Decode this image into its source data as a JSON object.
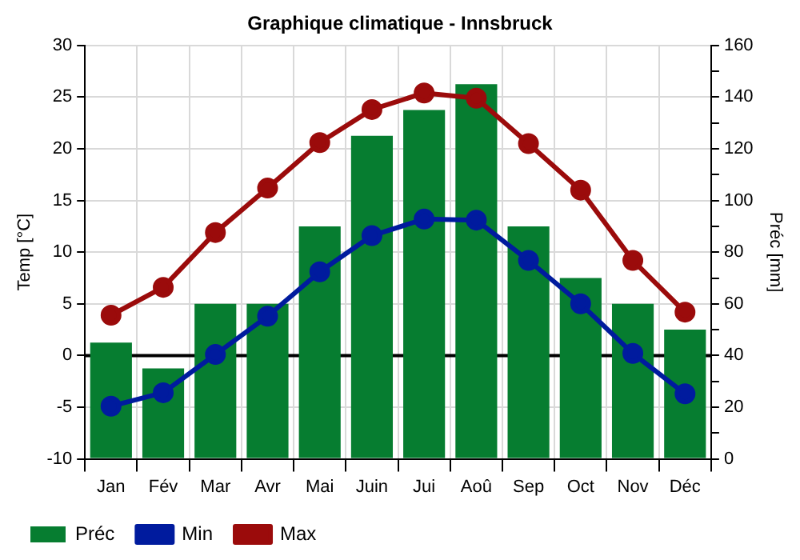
{
  "chart_data": {
    "type": "bar",
    "title": "Graphique climatique - Innsbruck",
    "categories": [
      "Jan",
      "Fév",
      "Mar",
      "Avr",
      "Mai",
      "Juin",
      "Jui",
      "Aoû",
      "Sep",
      "Oct",
      "Nov",
      "Déc"
    ],
    "series": [
      {
        "name": "Préc",
        "axis": "y2",
        "color": "#067d30",
        "values": [
          45,
          35,
          60,
          60,
          90,
          125,
          135,
          145,
          90,
          70,
          60,
          50
        ]
      },
      {
        "name": "Min",
        "type": "line",
        "axis": "y",
        "color": "#001b9e",
        "marker": "circle",
        "values": [
          -4.9,
          -3.6,
          0.1,
          3.8,
          8.1,
          11.6,
          13.2,
          13.1,
          9.2,
          5.0,
          0.2,
          -3.7
        ]
      },
      {
        "name": "Max",
        "type": "line",
        "axis": "y",
        "color": "#9b0b0b",
        "marker": "circle",
        "values": [
          3.9,
          6.6,
          11.9,
          16.2,
          20.6,
          23.8,
          25.4,
          24.9,
          20.5,
          16.0,
          9.2,
          4.2
        ]
      }
    ],
    "ylabel": "Temp [°C]",
    "y2label": "Préc [mm]",
    "ylim": [
      -10,
      30
    ],
    "yticks": [
      -10,
      -5,
      0,
      5,
      10,
      15,
      20,
      25,
      30
    ],
    "y2lim": [
      0,
      160
    ],
    "y2ticks": [
      0,
      {
        "value": 10,
        "label": null
      },
      20,
      {
        "value": 30,
        "label": null
      },
      40,
      {
        "value": 50,
        "label": null
      },
      60,
      {
        "value": 70,
        "label": null
      },
      80,
      {
        "value": 90,
        "label": null
      },
      100,
      {
        "value": 110,
        "label": null
      },
      120,
      {
        "value": 130,
        "label": null
      },
      140,
      {
        "value": 150,
        "label": null
      },
      160
    ],
    "ref_lines": [
      {
        "axis": "y",
        "value": 0,
        "color": "#000000"
      }
    ],
    "grid": true,
    "legend": "bottom left"
  }
}
